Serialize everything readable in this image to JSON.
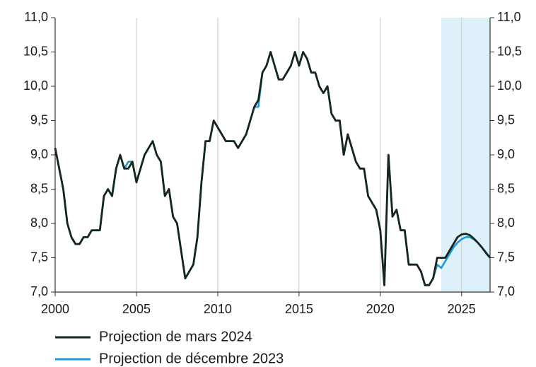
{
  "chart_data": {
    "type": "line",
    "x": [
      2000,
      2000.25,
      2000.5,
      2000.75,
      2001,
      2001.25,
      2001.5,
      2001.75,
      2002,
      2002.25,
      2002.5,
      2002.75,
      2003,
      2003.25,
      2003.5,
      2003.75,
      2004,
      2004.25,
      2004.5,
      2004.75,
      2005,
      2005.25,
      2005.5,
      2005.75,
      2006,
      2006.25,
      2006.5,
      2006.75,
      2007,
      2007.25,
      2007.5,
      2007.75,
      2008,
      2008.25,
      2008.5,
      2008.75,
      2009,
      2009.25,
      2009.5,
      2009.75,
      2010,
      2010.25,
      2010.5,
      2010.75,
      2011,
      2011.25,
      2011.5,
      2011.75,
      2012,
      2012.25,
      2012.5,
      2012.75,
      2013,
      2013.25,
      2013.5,
      2013.75,
      2014,
      2014.25,
      2014.5,
      2014.75,
      2015,
      2015.25,
      2015.5,
      2015.75,
      2016,
      2016.25,
      2016.5,
      2016.75,
      2017,
      2017.25,
      2017.5,
      2017.75,
      2018,
      2018.25,
      2018.5,
      2018.75,
      2019,
      2019.25,
      2019.5,
      2019.75,
      2020,
      2020.25,
      2020.5,
      2020.75,
      2021,
      2021.25,
      2021.5,
      2021.75,
      2022,
      2022.25,
      2022.5,
      2022.75,
      2023,
      2023.25,
      2023.5,
      2023.75,
      2024,
      2024.25,
      2024.5,
      2024.75,
      2025,
      2025.25,
      2025.5,
      2025.75,
      2026,
      2026.25,
      2026.5,
      2026.75
    ],
    "series": [
      {
        "name": "Projection de décembre 2023",
        "color": "#1f9ad6",
        "values": [
          9.1,
          8.8,
          8.5,
          8.0,
          7.8,
          7.7,
          7.7,
          7.8,
          7.8,
          7.9,
          7.9,
          7.9,
          8.4,
          8.5,
          8.4,
          8.8,
          9.0,
          8.8,
          8.9,
          8.9,
          8.6,
          8.8,
          9.0,
          9.1,
          9.2,
          9.0,
          8.9,
          8.4,
          8.5,
          8.1,
          8.0,
          7.6,
          7.2,
          7.3,
          7.4,
          7.8,
          8.6,
          9.2,
          9.2,
          9.5,
          9.4,
          9.3,
          9.2,
          9.2,
          9.2,
          9.1,
          9.2,
          9.3,
          9.5,
          9.7,
          9.7,
          10.2,
          10.3,
          10.5,
          10.3,
          10.1,
          10.1,
          10.2,
          10.3,
          10.5,
          10.3,
          10.5,
          10.4,
          10.2,
          10.2,
          10.0,
          9.9,
          10.0,
          9.6,
          9.5,
          9.5,
          9.0,
          9.3,
          9.1,
          8.9,
          8.8,
          8.8,
          8.4,
          8.3,
          8.2,
          7.9,
          7.1,
          9.0,
          8.1,
          8.2,
          7.9,
          7.9,
          7.4,
          7.4,
          7.4,
          7.3,
          7.1,
          7.1,
          7.2,
          7.4,
          7.35,
          7.45,
          7.55,
          7.65,
          7.72,
          7.77,
          7.8,
          7.8,
          7.77,
          7.72,
          7.65,
          7.58,
          7.5
        ]
      },
      {
        "name": "Projection de mars 2024",
        "color": "#15261a",
        "values": [
          9.1,
          8.8,
          8.5,
          8.0,
          7.8,
          7.7,
          7.7,
          7.8,
          7.8,
          7.9,
          7.9,
          7.9,
          8.4,
          8.5,
          8.4,
          8.8,
          9.0,
          8.8,
          8.8,
          8.9,
          8.6,
          8.8,
          9.0,
          9.1,
          9.2,
          9.0,
          8.9,
          8.4,
          8.5,
          8.1,
          8.0,
          7.6,
          7.2,
          7.3,
          7.4,
          7.8,
          8.6,
          9.2,
          9.2,
          9.5,
          9.4,
          9.3,
          9.2,
          9.2,
          9.2,
          9.1,
          9.2,
          9.3,
          9.5,
          9.7,
          9.8,
          10.2,
          10.3,
          10.5,
          10.3,
          10.1,
          10.1,
          10.2,
          10.3,
          10.5,
          10.3,
          10.5,
          10.4,
          10.2,
          10.2,
          10.0,
          9.9,
          10.0,
          9.6,
          9.5,
          9.5,
          9.0,
          9.3,
          9.1,
          8.9,
          8.8,
          8.8,
          8.4,
          8.3,
          8.2,
          7.9,
          7.1,
          9.0,
          8.1,
          8.2,
          7.9,
          7.9,
          7.4,
          7.4,
          7.4,
          7.3,
          7.1,
          7.1,
          7.2,
          7.5,
          7.5,
          7.5,
          7.6,
          7.7,
          7.8,
          7.84,
          7.85,
          7.83,
          7.78,
          7.72,
          7.65,
          7.57,
          7.5
        ]
      }
    ],
    "legend_order": [
      1,
      0
    ],
    "shaded_region": [
      2023.75,
      2026.75
    ],
    "shade_color": "#def1fa",
    "xlim": [
      2000,
      2026.75
    ],
    "xticks": [
      2000,
      2005,
      2010,
      2015,
      2020,
      2025
    ],
    "ylim": [
      7,
      11
    ],
    "yticks": [
      {
        "value": 7,
        "label": "7,0"
      },
      {
        "value": 7.5,
        "label": "7,5"
      },
      {
        "value": 8,
        "label": "8,0"
      },
      {
        "value": 8.5,
        "label": "8,5"
      },
      {
        "value": 9,
        "label": "9,0"
      },
      {
        "value": 9.5,
        "label": "9,5"
      },
      {
        "value": 10,
        "label": "10,0"
      },
      {
        "value": 10.5,
        "label": "10,5"
      },
      {
        "value": 11,
        "label": "11,0"
      }
    ],
    "y2lim": [
      7,
      11
    ],
    "y2ticks": [
      {
        "value": 7,
        "label": "7,0"
      },
      {
        "value": 7.5,
        "label": "7,5"
      },
      {
        "value": 8,
        "label": "8,0"
      },
      {
        "value": 8.5,
        "label": "8,5"
      },
      {
        "value": 9,
        "label": "9,0"
      },
      {
        "value": 9.5,
        "label": "9,5"
      },
      {
        "value": 10,
        "label": "10,0"
      },
      {
        "value": 10.5,
        "label": "10,5"
      },
      {
        "value": 11,
        "label": "11,0"
      }
    ],
    "xgrid": true
  }
}
